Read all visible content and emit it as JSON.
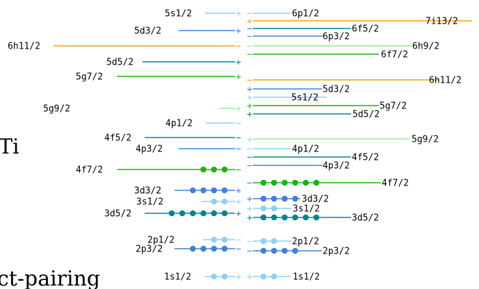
{
  "colors": {
    "s12": "#8fd0f5",
    "p12": "#8fd0f5",
    "p32": "#3f7fe0",
    "d32": "#3f7fe0",
    "d52": "#00868a",
    "f52": "#00868a",
    "f72": "#17b40f",
    "g72": "#17b40f",
    "g92": "#90ee90",
    "h92": "#90ee90",
    "h112": "#f0a000",
    "i132": "#f0a000"
  },
  "fragments": {
    "side_text": "Ti",
    "bottom_text": "ct-pairing"
  },
  "levels": [
    {
      "side": "left",
      "label": "5s1/2",
      "ckey": "s12",
      "sign": "+",
      "dots": 0
    },
    {
      "side": "left",
      "label": "5d3/2",
      "ckey": "d32",
      "sign": "+",
      "dots": 0
    },
    {
      "side": "left",
      "label": "6h11/2",
      "ckey": "h112",
      "sign": "−",
      "dots": 0
    },
    {
      "side": "left",
      "label": "5d5/2",
      "ckey": "d52",
      "sign": "+",
      "dots": 0
    },
    {
      "side": "left",
      "label": "5g7/2",
      "ckey": "g72",
      "sign": "+",
      "dots": 0
    },
    {
      "side": "left",
      "label": "5g9/2",
      "ckey": "g92",
      "sign": "+",
      "dots": 0
    },
    {
      "side": "left",
      "label": "4p1/2",
      "ckey": "p12",
      "sign": "−",
      "dots": 0
    },
    {
      "side": "left",
      "label": "4f5/2",
      "ckey": "f52",
      "sign": "−",
      "dots": 0
    },
    {
      "side": "left",
      "label": "4p3/2",
      "ckey": "p32",
      "sign": "−",
      "dots": 0
    },
    {
      "side": "left",
      "label": "4f7/2",
      "ckey": "f72",
      "sign": "−",
      "dots": 3
    },
    {
      "side": "left",
      "label": "3d3/2",
      "ckey": "d32",
      "sign": "+",
      "dots": 4
    },
    {
      "side": "left",
      "label": "3s1/2",
      "ckey": "s12",
      "sign": "+",
      "dots": 2
    },
    {
      "side": "left",
      "label": "3d5/2",
      "ckey": "d52",
      "sign": "+",
      "dots": 6
    },
    {
      "side": "left",
      "label": "2p1/2",
      "ckey": "p12",
      "sign": "−",
      "dots": 2
    },
    {
      "side": "left",
      "label": "2p3/2",
      "ckey": "p32",
      "sign": "−",
      "dots": 4
    },
    {
      "side": "left",
      "label": "1s1/2",
      "ckey": "s12",
      "sign": "+",
      "dots": 2
    },
    {
      "side": "right",
      "label": "6p1/2",
      "ckey": "p12",
      "sign": "−",
      "dots": 0
    },
    {
      "side": "right",
      "label": "7i13/2",
      "ckey": "i132",
      "sign": "+",
      "dots": 0
    },
    {
      "side": "right",
      "label": "6f5/2",
      "ckey": "f52",
      "sign": "−",
      "dots": 0
    },
    {
      "side": "right",
      "label": "6p3/2",
      "ckey": "p32",
      "sign": "−",
      "dots": 0
    },
    {
      "side": "right",
      "label": "6h9/2",
      "ckey": "h92",
      "sign": "−",
      "dots": 0
    },
    {
      "side": "right",
      "label": "6f7/2",
      "ckey": "f72",
      "sign": "−",
      "dots": 0
    },
    {
      "side": "right",
      "label": "6h11/2",
      "ckey": "h112",
      "sign": "−",
      "dots": 0
    },
    {
      "side": "right",
      "label": "5d3/2",
      "ckey": "d32",
      "sign": "+",
      "dots": 0
    },
    {
      "side": "right",
      "label": "5s1/2",
      "ckey": "s12",
      "sign": "+",
      "dots": 0
    },
    {
      "side": "right",
      "label": "5g7/2",
      "ckey": "g72",
      "sign": "+",
      "dots": 0
    },
    {
      "side": "right",
      "label": "5d5/2",
      "ckey": "d52",
      "sign": "+",
      "dots": 0
    },
    {
      "side": "right",
      "label": "5g9/2",
      "ckey": "g92",
      "sign": "+",
      "dots": 0
    },
    {
      "side": "right",
      "label": "4p1/2",
      "ckey": "p12",
      "sign": "−",
      "dots": 0
    },
    {
      "side": "right",
      "label": "4f5/2",
      "ckey": "f52",
      "sign": "−",
      "dots": 0
    },
    {
      "side": "right",
      "label": "4p3/2",
      "ckey": "p32",
      "sign": "−",
      "dots": 0
    },
    {
      "side": "right",
      "label": "4f7/2",
      "ckey": "f72",
      "sign": "−",
      "dots": 6
    },
    {
      "side": "right",
      "label": "3d3/2",
      "ckey": "d32",
      "sign": "+",
      "dots": 4
    },
    {
      "side": "right",
      "label": "3s1/2",
      "ckey": "s12",
      "sign": "+",
      "dots": 2
    },
    {
      "side": "right",
      "label": "3d5/2",
      "ckey": "d52",
      "sign": "+",
      "dots": 6
    },
    {
      "side": "right",
      "label": "2p1/2",
      "ckey": "p12",
      "sign": "−",
      "dots": 2
    },
    {
      "side": "right",
      "label": "2p3/2",
      "ckey": "p32",
      "sign": "−",
      "dots": 4
    },
    {
      "side": "right",
      "label": "1s1/2",
      "ckey": "s12",
      "sign": "+",
      "dots": 2
    }
  ]
}
